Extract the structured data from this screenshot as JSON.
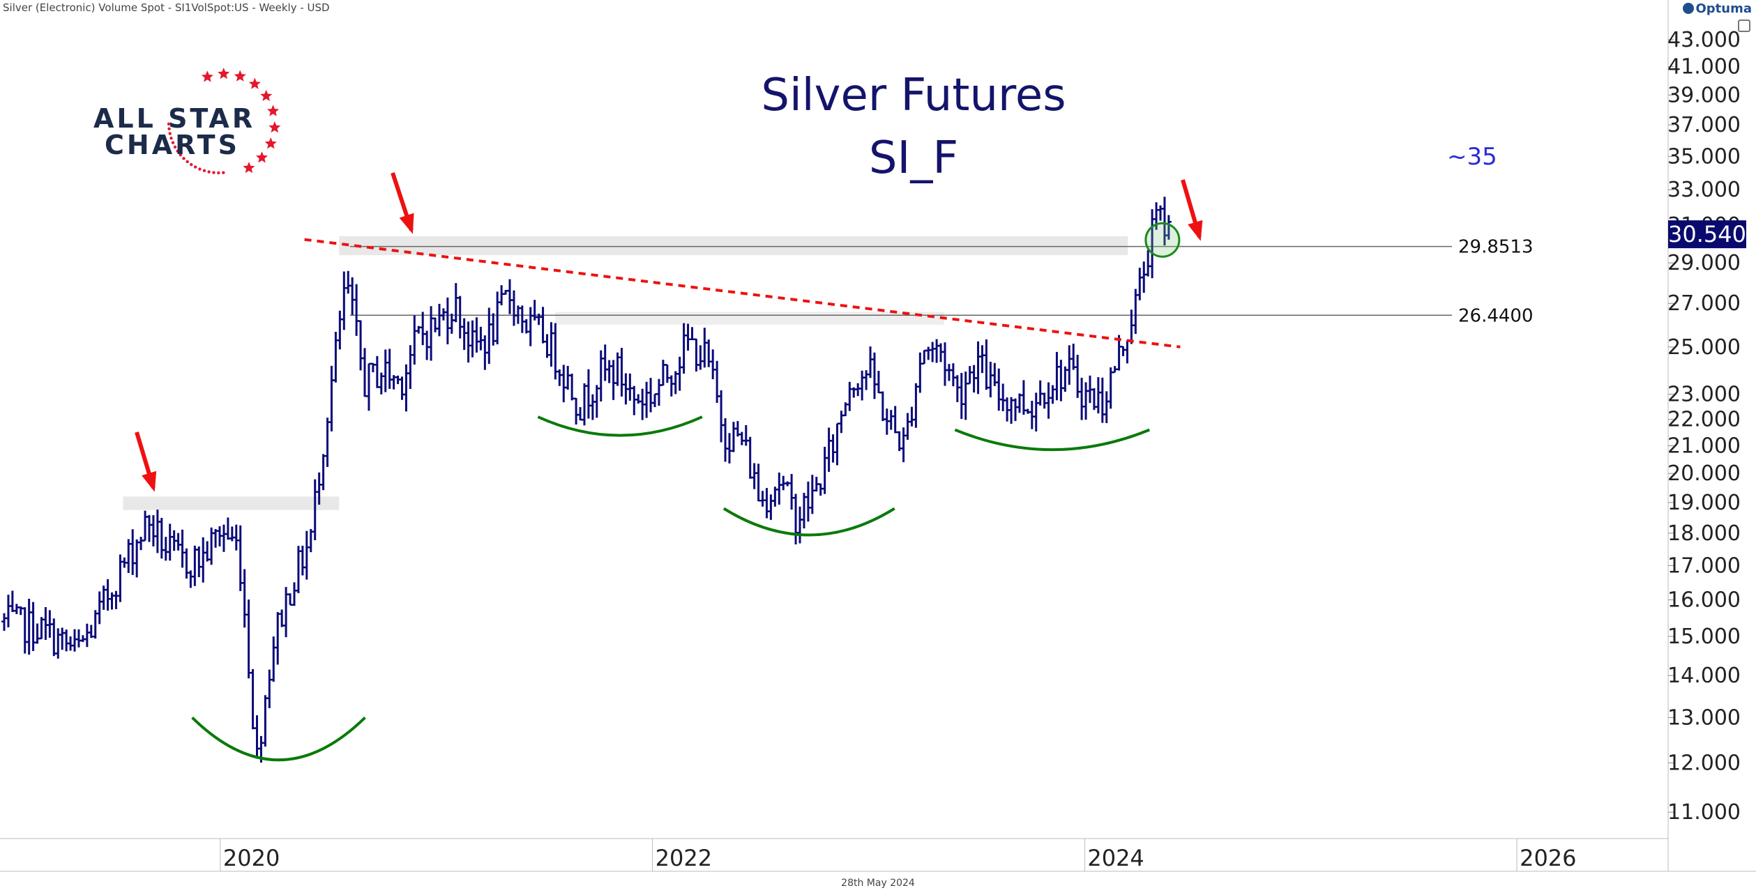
{
  "header": {
    "symbol_info": "Silver (Electronic) Volume Spot - SI1VolSpot:US - Weekly - USD"
  },
  "brand": {
    "name": "Optuma"
  },
  "footer": {
    "date": "28th May 2024"
  },
  "logo": {
    "line1": "ALL STAR",
    "line2": "CHARTS"
  },
  "colors": {
    "price": "#0a0a7a",
    "support": "#ee1111",
    "arrows": "#ee1111",
    "arcs": "#0a7a0a",
    "title": "#14146b",
    "last_price_bg": "#0a0a6e"
  },
  "chart_data": {
    "type": "bar",
    "title": "Silver Futures",
    "subtitle": "SI_F",
    "y_scale": "log",
    "ylim": [
      10.5,
      45
    ],
    "y_ticks": [
      "11.000",
      "12.000",
      "13.000",
      "14.000",
      "15.000",
      "16.000",
      "17.000",
      "18.000",
      "19.000",
      "20.000",
      "21.000",
      "22.000",
      "23.000",
      "25.000",
      "27.000",
      "29.000",
      "31.000",
      "33.000",
      "35.000",
      "37.000",
      "39.000",
      "41.000",
      "43.000"
    ],
    "x_ticks": [
      "2020",
      "2022",
      "2024",
      "2026"
    ],
    "last_price": "30.540",
    "levels": [
      {
        "value": 29.8513,
        "label": "29.8513"
      },
      {
        "value": 26.44,
        "label": "26.4400"
      }
    ],
    "annotation": "~35",
    "trendline": {
      "from": {
        "date": "2020-08",
        "value": 30.0
      },
      "to": {
        "date": "2024-06",
        "value": 25.0
      }
    },
    "weekly_closes": [
      {
        "date": "2019-01",
        "close": 15.4
      },
      {
        "date": "2019-03",
        "close": 15.2
      },
      {
        "date": "2019-05",
        "close": 14.6
      },
      {
        "date": "2019-06",
        "close": 15.3
      },
      {
        "date": "2019-07",
        "close": 16.4
      },
      {
        "date": "2019-08",
        "close": 17.4
      },
      {
        "date": "2019-09",
        "close": 18.4
      },
      {
        "date": "2019-10",
        "close": 17.5
      },
      {
        "date": "2019-11",
        "close": 17.1
      },
      {
        "date": "2019-12",
        "close": 17.2
      },
      {
        "date": "2020-01",
        "close": 18.1
      },
      {
        "date": "2020-02",
        "close": 17.6
      },
      {
        "date": "2020-03",
        "close": 12.0
      },
      {
        "date": "2020-04",
        "close": 15.0
      },
      {
        "date": "2020-05",
        "close": 16.5
      },
      {
        "date": "2020-06",
        "close": 17.8
      },
      {
        "date": "2020-07",
        "close": 22.5
      },
      {
        "date": "2020-08",
        "close": 28.0
      },
      {
        "date": "2020-09",
        "close": 23.5
      },
      {
        "date": "2020-10",
        "close": 24.0
      },
      {
        "date": "2020-11",
        "close": 23.5
      },
      {
        "date": "2020-12",
        "close": 25.5
      },
      {
        "date": "2021-01",
        "close": 26.0
      },
      {
        "date": "2021-02",
        "close": 27.0
      },
      {
        "date": "2021-03",
        "close": 25.0
      },
      {
        "date": "2021-04",
        "close": 25.5
      },
      {
        "date": "2021-05",
        "close": 27.5
      },
      {
        "date": "2021-06",
        "close": 26.0
      },
      {
        "date": "2021-07",
        "close": 25.5
      },
      {
        "date": "2021-08",
        "close": 24.0
      },
      {
        "date": "2021-09",
        "close": 22.5
      },
      {
        "date": "2021-10",
        "close": 23.8
      },
      {
        "date": "2021-11",
        "close": 24.0
      },
      {
        "date": "2021-12",
        "close": 22.8
      },
      {
        "date": "2022-01",
        "close": 23.0
      },
      {
        "date": "2022-02",
        "close": 24.0
      },
      {
        "date": "2022-03",
        "close": 25.2
      },
      {
        "date": "2022-04",
        "close": 24.5
      },
      {
        "date": "2022-05",
        "close": 21.5
      },
      {
        "date": "2022-06",
        "close": 21.2
      },
      {
        "date": "2022-07",
        "close": 19.0
      },
      {
        "date": "2022-08",
        "close": 19.8
      },
      {
        "date": "2022-09",
        "close": 18.5
      },
      {
        "date": "2022-10",
        "close": 19.3
      },
      {
        "date": "2022-11",
        "close": 21.0
      },
      {
        "date": "2022-12",
        "close": 23.6
      },
      {
        "date": "2023-01",
        "close": 24.0
      },
      {
        "date": "2023-02",
        "close": 22.0
      },
      {
        "date": "2023-03",
        "close": 21.0
      },
      {
        "date": "2023-04",
        "close": 25.0
      },
      {
        "date": "2023-05",
        "close": 24.8
      },
      {
        "date": "2023-06",
        "close": 23.0
      },
      {
        "date": "2023-07",
        "close": 24.5
      },
      {
        "date": "2023-08",
        "close": 23.0
      },
      {
        "date": "2023-09",
        "close": 22.8
      },
      {
        "date": "2023-10",
        "close": 22.5
      },
      {
        "date": "2023-11",
        "close": 23.5
      },
      {
        "date": "2023-12",
        "close": 24.0
      },
      {
        "date": "2024-01",
        "close": 23.0
      },
      {
        "date": "2024-02",
        "close": 22.7
      },
      {
        "date": "2024-03",
        "close": 24.8
      },
      {
        "date": "2024-04",
        "close": 27.5
      },
      {
        "date": "2024-05",
        "close": 31.5
      },
      {
        "date": "2024-05-28",
        "close": 30.54
      }
    ]
  }
}
